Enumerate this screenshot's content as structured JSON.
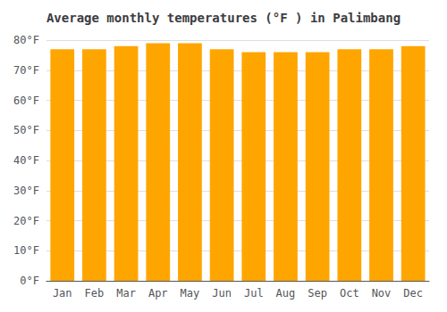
{
  "chart_data": {
    "type": "bar",
    "title": "Average monthly temperatures (°F ) in Palimbang",
    "categories": [
      "Jan",
      "Feb",
      "Mar",
      "Apr",
      "May",
      "Jun",
      "Jul",
      "Aug",
      "Sep",
      "Oct",
      "Nov",
      "Dec"
    ],
    "values": [
      77,
      77,
      78,
      79,
      79,
      77,
      76,
      76,
      76,
      77,
      77,
      78
    ],
    "color": "#FFA500",
    "ylim": [
      0,
      80
    ],
    "yticks": [
      {
        "value": 0,
        "label": "0°F"
      },
      {
        "value": 10,
        "label": "10°F"
      },
      {
        "value": 20,
        "label": "20°F"
      },
      {
        "value": 30,
        "label": "30°F"
      },
      {
        "value": 40,
        "label": "40°F"
      },
      {
        "value": 50,
        "label": "50°F"
      },
      {
        "value": 60,
        "label": "60°F"
      },
      {
        "value": 70,
        "label": "70°F"
      },
      {
        "value": 80,
        "label": "80°F"
      }
    ],
    "grid": true
  }
}
